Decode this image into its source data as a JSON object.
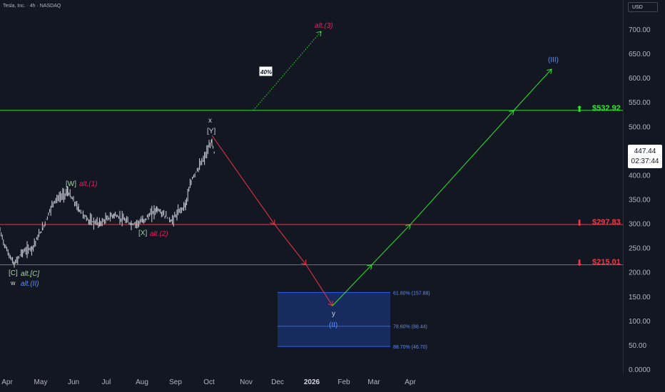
{
  "header": {
    "symbol_line": "Tesla, Inc. · 4h · NASDAQ",
    "currency": "USD"
  },
  "price_box": {
    "price": "447.44",
    "countdown": "02:37:44"
  },
  "levels": [
    {
      "value": 532.92,
      "label": "$532.92",
      "color": "#2ee62e",
      "direction": "up"
    },
    {
      "value": 297.83,
      "label": "$297.83",
      "color": "#f23645",
      "direction": "down"
    },
    {
      "value": 215.01,
      "label": "$215.01",
      "color": "#f23645",
      "direction": "down"
    }
  ],
  "fib_zone": {
    "levels": [
      {
        "value": 157.88,
        "label": "61.80% (157.88)"
      },
      {
        "value": 88.44,
        "label": "78.60% (88.44)"
      },
      {
        "value": 46.7,
        "label": "88.70% (46.70)"
      }
    ],
    "color": "#2962ff"
  },
  "wave_labels": {
    "x": "x",
    "Y": "[Y]",
    "W": "[W]",
    "alt1": "alt.(1)",
    "X": "[X]",
    "alt2": "alt.(2)",
    "C": "[C]",
    "altC": "alt.[C]",
    "w": "w",
    "altII": "alt.(II)",
    "y": "y",
    "II": "(II)",
    "III": "(III)",
    "alt3": "alt.(3)",
    "pct": "40%"
  },
  "colors": {
    "background": "#131722",
    "candles": "#d1d4dc",
    "red": "#f23645",
    "green": "#2ee62e",
    "blue": "#2962ff",
    "pink": "#e91e63"
  },
  "chart_data": {
    "type": "line",
    "title": "Tesla, Inc. · 4h · NASDAQ",
    "y_axis": {
      "ticks": [
        "700.00",
        "650.00",
        "600.00",
        "550.00",
        "500.00",
        "450.00",
        "400.00",
        "350.00",
        "300.00",
        "250.00",
        "200.00",
        "150.00",
        "100.00",
        "50.00",
        "0.0000"
      ],
      "ylim": [
        0,
        740
      ]
    },
    "x_axis": {
      "ticks": [
        "Apr",
        "May",
        "Jun",
        "Jul",
        "Aug",
        "Sep",
        "Oct",
        "Nov",
        "Dec",
        "2026",
        "Feb",
        "Mar",
        "Apr"
      ]
    },
    "series": [
      {
        "x": [
          "Apr",
          "Apr",
          "Apr",
          "Apr",
          "May",
          "May",
          "May",
          "Jun",
          "Jun",
          "Jun",
          "Jul",
          "Jul",
          "Jul",
          "Aug",
          "Aug",
          "Aug",
          "Sep",
          "Sep",
          "Sep",
          "Oct"
        ],
        "values": [
          285,
          255,
          215,
          245,
          255,
          290,
          345,
          365,
          330,
          305,
          300,
          315,
          295,
          310,
          330,
          305,
          330,
          390,
          430,
          470
        ]
      },
      {
        "x": [
          "Oct",
          "Dec",
          "2026"
        ],
        "values": [
          470,
          297.83,
          128
        ]
      },
      {
        "x": [
          "2026",
          "Mar",
          "Apr"
        ],
        "values": [
          128,
          297.83,
          620
        ]
      }
    ],
    "last_price": 447.44,
    "grid": false
  }
}
